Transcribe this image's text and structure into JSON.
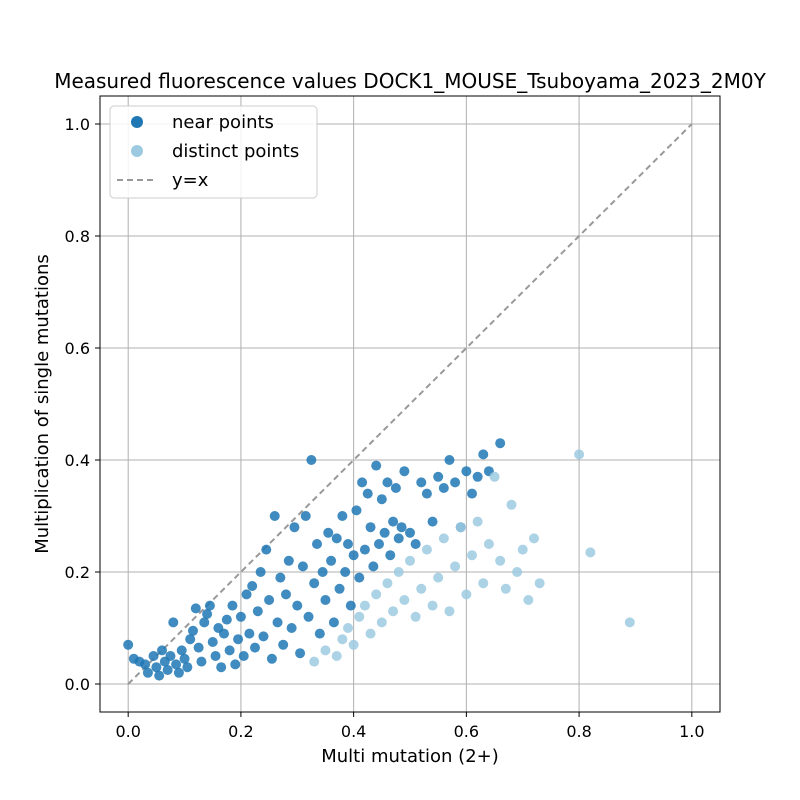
{
  "chart_data": {
    "type": "scatter",
    "title": "Measured fluorescence values DOCK1_MOUSE_Tsuboyama_2023_2M0Y",
    "xlabel": "Multi mutation (2+)",
    "ylabel": "Multiplication of single mutations",
    "xlim": [
      -0.05,
      1.05
    ],
    "ylim": [
      -0.05,
      1.05
    ],
    "xticks": [
      "0.0",
      "0.2",
      "0.4",
      "0.6",
      "0.8",
      "1.0"
    ],
    "yticks": [
      "0.0",
      "0.2",
      "0.4",
      "0.6",
      "0.8",
      "1.0"
    ],
    "grid": true,
    "legend_position": "top-left",
    "series": [
      {
        "name": "near points",
        "color": "#1f77b4",
        "points": [
          [
            0.0,
            0.07
          ],
          [
            0.01,
            0.045
          ],
          [
            0.02,
            0.04
          ],
          [
            0.03,
            0.035
          ],
          [
            0.035,
            0.02
          ],
          [
            0.045,
            0.05
          ],
          [
            0.05,
            0.03
          ],
          [
            0.055,
            0.015
          ],
          [
            0.06,
            0.06
          ],
          [
            0.065,
            0.04
          ],
          [
            0.07,
            0.025
          ],
          [
            0.075,
            0.05
          ],
          [
            0.08,
            0.11
          ],
          [
            0.085,
            0.035
          ],
          [
            0.09,
            0.02
          ],
          [
            0.095,
            0.06
          ],
          [
            0.1,
            0.045
          ],
          [
            0.105,
            0.03
          ],
          [
            0.11,
            0.08
          ],
          [
            0.115,
            0.095
          ],
          [
            0.12,
            0.135
          ],
          [
            0.125,
            0.065
          ],
          [
            0.13,
            0.04
          ],
          [
            0.135,
            0.11
          ],
          [
            0.14,
            0.125
          ],
          [
            0.145,
            0.14
          ],
          [
            0.15,
            0.075
          ],
          [
            0.155,
            0.05
          ],
          [
            0.16,
            0.1
          ],
          [
            0.165,
            0.03
          ],
          [
            0.17,
            0.09
          ],
          [
            0.175,
            0.115
          ],
          [
            0.18,
            0.06
          ],
          [
            0.185,
            0.14
          ],
          [
            0.19,
            0.035
          ],
          [
            0.195,
            0.08
          ],
          [
            0.2,
            0.12
          ],
          [
            0.205,
            0.05
          ],
          [
            0.21,
            0.16
          ],
          [
            0.215,
            0.09
          ],
          [
            0.22,
            0.175
          ],
          [
            0.225,
            0.065
          ],
          [
            0.23,
            0.13
          ],
          [
            0.235,
            0.2
          ],
          [
            0.24,
            0.085
          ],
          [
            0.245,
            0.24
          ],
          [
            0.25,
            0.15
          ],
          [
            0.255,
            0.045
          ],
          [
            0.26,
            0.3
          ],
          [
            0.265,
            0.11
          ],
          [
            0.27,
            0.19
          ],
          [
            0.275,
            0.07
          ],
          [
            0.28,
            0.16
          ],
          [
            0.285,
            0.22
          ],
          [
            0.29,
            0.1
          ],
          [
            0.295,
            0.28
          ],
          [
            0.3,
            0.14
          ],
          [
            0.305,
            0.055
          ],
          [
            0.31,
            0.21
          ],
          [
            0.315,
            0.3
          ],
          [
            0.32,
            0.12
          ],
          [
            0.325,
            0.4
          ],
          [
            0.33,
            0.18
          ],
          [
            0.335,
            0.25
          ],
          [
            0.34,
            0.09
          ],
          [
            0.345,
            0.2
          ],
          [
            0.35,
            0.15
          ],
          [
            0.355,
            0.27
          ],
          [
            0.36,
            0.22
          ],
          [
            0.365,
            0.11
          ],
          [
            0.37,
            0.26
          ],
          [
            0.375,
            0.17
          ],
          [
            0.38,
            0.3
          ],
          [
            0.385,
            0.2
          ],
          [
            0.39,
            0.25
          ],
          [
            0.395,
            0.14
          ],
          [
            0.4,
            0.23
          ],
          [
            0.405,
            0.31
          ],
          [
            0.41,
            0.19
          ],
          [
            0.415,
            0.36
          ],
          [
            0.42,
            0.24
          ],
          [
            0.425,
            0.34
          ],
          [
            0.43,
            0.28
          ],
          [
            0.435,
            0.21
          ],
          [
            0.44,
            0.39
          ],
          [
            0.445,
            0.25
          ],
          [
            0.45,
            0.33
          ],
          [
            0.455,
            0.27
          ],
          [
            0.46,
            0.36
          ],
          [
            0.465,
            0.23
          ],
          [
            0.47,
            0.29
          ],
          [
            0.475,
            0.35
          ],
          [
            0.48,
            0.26
          ],
          [
            0.485,
            0.28
          ],
          [
            0.49,
            0.38
          ],
          [
            0.5,
            0.27
          ],
          [
            0.51,
            0.25
          ],
          [
            0.52,
            0.36
          ],
          [
            0.53,
            0.34
          ],
          [
            0.54,
            0.29
          ],
          [
            0.55,
            0.37
          ],
          [
            0.56,
            0.35
          ],
          [
            0.57,
            0.4
          ],
          [
            0.58,
            0.36
          ],
          [
            0.59,
            0.28
          ],
          [
            0.6,
            0.38
          ],
          [
            0.61,
            0.34
          ],
          [
            0.62,
            0.37
          ],
          [
            0.63,
            0.41
          ],
          [
            0.64,
            0.38
          ],
          [
            0.66,
            0.43
          ]
        ]
      },
      {
        "name": "distinct points",
        "color": "#9ecae1",
        "points": [
          [
            0.33,
            0.04
          ],
          [
            0.35,
            0.06
          ],
          [
            0.37,
            0.05
          ],
          [
            0.38,
            0.08
          ],
          [
            0.39,
            0.1
          ],
          [
            0.4,
            0.07
          ],
          [
            0.41,
            0.12
          ],
          [
            0.42,
            0.14
          ],
          [
            0.43,
            0.09
          ],
          [
            0.44,
            0.16
          ],
          [
            0.45,
            0.11
          ],
          [
            0.46,
            0.18
          ],
          [
            0.47,
            0.13
          ],
          [
            0.48,
            0.2
          ],
          [
            0.49,
            0.15
          ],
          [
            0.5,
            0.22
          ],
          [
            0.51,
            0.12
          ],
          [
            0.52,
            0.17
          ],
          [
            0.53,
            0.24
          ],
          [
            0.54,
            0.14
          ],
          [
            0.55,
            0.19
          ],
          [
            0.56,
            0.26
          ],
          [
            0.57,
            0.13
          ],
          [
            0.58,
            0.21
          ],
          [
            0.59,
            0.28
          ],
          [
            0.6,
            0.16
          ],
          [
            0.61,
            0.23
          ],
          [
            0.62,
            0.29
          ],
          [
            0.63,
            0.18
          ],
          [
            0.64,
            0.25
          ],
          [
            0.65,
            0.37
          ],
          [
            0.66,
            0.22
          ],
          [
            0.67,
            0.17
          ],
          [
            0.68,
            0.32
          ],
          [
            0.69,
            0.2
          ],
          [
            0.7,
            0.24
          ],
          [
            0.71,
            0.15
          ],
          [
            0.72,
            0.26
          ],
          [
            0.73,
            0.18
          ],
          [
            0.8,
            0.41
          ],
          [
            0.82,
            0.235
          ],
          [
            0.89,
            0.11
          ]
        ]
      }
    ],
    "reference_line": {
      "name": "y=x",
      "color": "#999999",
      "from": [
        0,
        0
      ],
      "to": [
        1,
        1
      ]
    }
  }
}
